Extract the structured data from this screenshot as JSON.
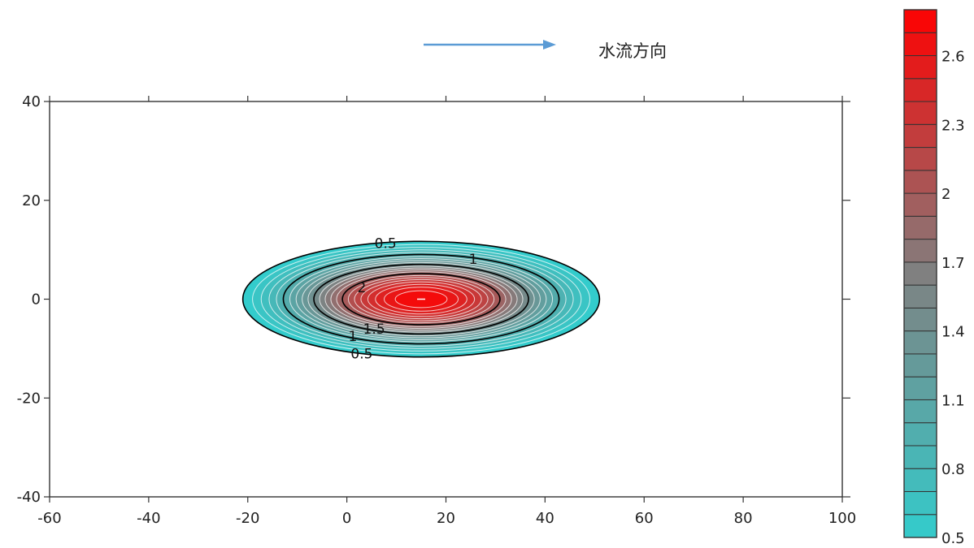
{
  "annotation": {
    "flow_direction": "水流方向"
  },
  "colors": {
    "arrow": "#5b9bd5",
    "low": "#33cccc",
    "mid": "#808080",
    "high": "#ff0000",
    "axis": "#333333"
  },
  "chart_data": {
    "type": "contour",
    "xlim": [
      -60,
      100
    ],
    "ylim": [
      -40,
      40
    ],
    "x_ticks": [
      -60,
      -40,
      -20,
      0,
      20,
      40,
      60,
      80,
      100
    ],
    "y_ticks": [
      -40,
      -20,
      0,
      20,
      40
    ],
    "x_tick_labels": [
      "-60",
      "-40",
      "-20",
      "0",
      "20",
      "40",
      "60",
      "80",
      "100"
    ],
    "y_tick_labels": [
      "-40",
      "-20",
      "0",
      "20",
      "40"
    ],
    "grid": false,
    "plume": {
      "center_x": 15,
      "center_y": 0,
      "peak_value": 2.8,
      "outer_level": 0.5,
      "outer_x_range": [
        -21,
        51
      ],
      "outer_y_range": [
        -11.7,
        11.7
      ]
    },
    "fill_levels": [
      0.5,
      0.6,
      0.7,
      0.8,
      0.9,
      1.0,
      1.1,
      1.2,
      1.3,
      1.4,
      1.5,
      1.6,
      1.7,
      1.8,
      1.9,
      2.0,
      2.1,
      2.2,
      2.3,
      2.4,
      2.5,
      2.6,
      2.7,
      2.8
    ],
    "major_contours": [
      0.5,
      1,
      1.5,
      2
    ],
    "contour_labels": [
      {
        "text": "0.5",
        "x": 7.8,
        "y": 11.2
      },
      {
        "text": "1",
        "x": 25.5,
        "y": 8.0
      },
      {
        "text": "2",
        "x": 3,
        "y": 2.2
      },
      {
        "text": "1.5",
        "x": 5.5,
        "y": -6.2
      },
      {
        "text": "1",
        "x": 1.2,
        "y": -7.6
      },
      {
        "text": "0.5",
        "x": 3,
        "y": -11.2
      }
    ],
    "colorbar": {
      "min": 0.5,
      "max": 2.8,
      "levels": 23,
      "tick_values": [
        0.5,
        0.8,
        1.1,
        1.4,
        1.7,
        2,
        2.3,
        2.6
      ],
      "tick_labels": [
        "0.5",
        "0.8",
        "1.1",
        "1.4",
        "1.7",
        "2",
        "2.3",
        "2.6"
      ]
    }
  }
}
